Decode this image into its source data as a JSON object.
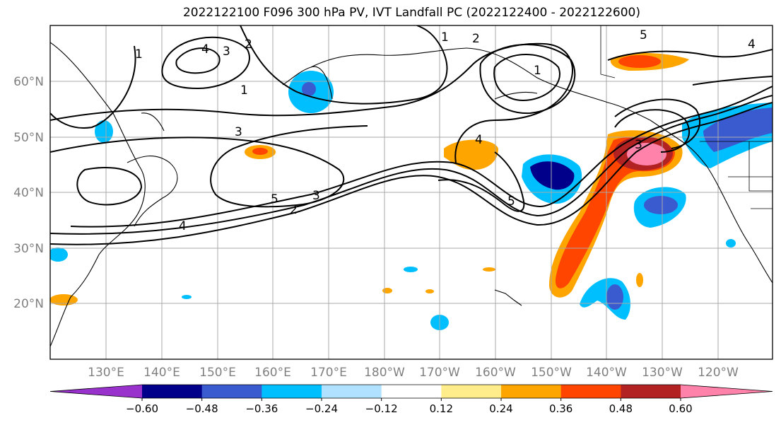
{
  "title": "2022122100 F096 300 hPa PV, IVT Landfall PC (2022122400 - 2022122600)",
  "map": {
    "lon_labels": [
      "130°E",
      "140°E",
      "150°E",
      "160°E",
      "170°E",
      "180°W",
      "170°W",
      "160°W",
      "150°W",
      "140°W",
      "130°W",
      "120°W"
    ],
    "lat_labels": [
      "60°N",
      "50°N",
      "40°N",
      "30°N",
      "20°N"
    ],
    "grid": true,
    "contour_labels": [
      "1",
      "2",
      "3",
      "4",
      "5"
    ]
  },
  "colorbar": {
    "ticks": [
      "−0.60",
      "−0.48",
      "−0.36",
      "−0.24",
      "−0.12",
      "0.12",
      "0.24",
      "0.36",
      "0.48",
      "0.60"
    ],
    "colors": [
      "#9932cc",
      "#00008b",
      "#3a5bd0",
      "#00bfff",
      "#b0e2ff",
      "#ffffff",
      "#ffec8b",
      "#ffa500",
      "#ff4500",
      "#b22222",
      "#ff82ab"
    ],
    "extend": "both"
  }
}
